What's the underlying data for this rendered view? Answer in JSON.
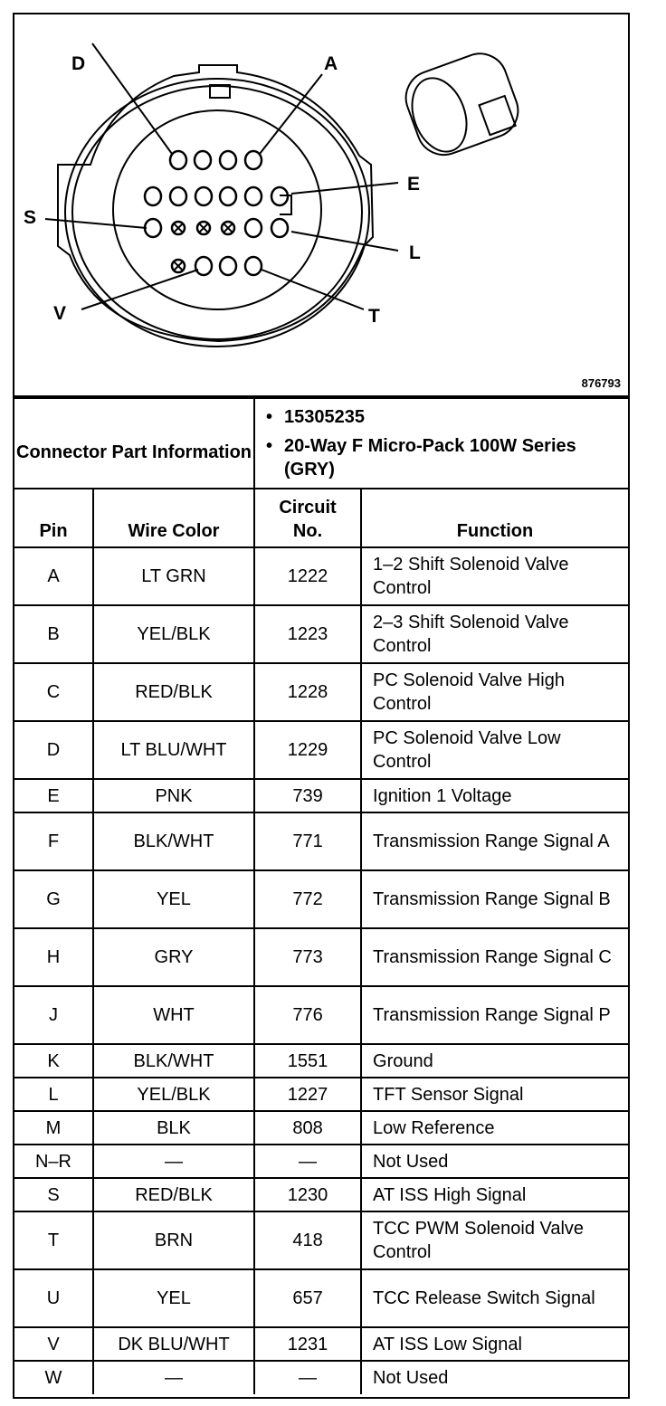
{
  "figure_number": "876793",
  "pin_labels": {
    "D": "D",
    "A": "A",
    "E": "E",
    "S": "S",
    "L": "L",
    "V": "V",
    "T": "T"
  },
  "connector_info": {
    "label": "Connector Part Information",
    "items": [
      "15305235",
      "20-Way F Micro-Pack 100W Series (GRY)"
    ]
  },
  "columns": {
    "pin": "Pin",
    "wire": "Wire Color",
    "circuit": "Circuit No.",
    "function": "Function"
  },
  "rows": [
    {
      "pin": "A",
      "wire": "LT GRN",
      "circuit": "1222",
      "function": "1–2 Shift Solenoid Valve Control"
    },
    {
      "pin": "B",
      "wire": "YEL/BLK",
      "circuit": "1223",
      "function": "2–3 Shift Solenoid Valve Control"
    },
    {
      "pin": "C",
      "wire": "RED/BLK",
      "circuit": "1228",
      "function": "PC Solenoid Valve High Control"
    },
    {
      "pin": "D",
      "wire": "LT BLU/WHT",
      "circuit": "1229",
      "function": "PC Solenoid Valve Low Control"
    },
    {
      "pin": "E",
      "wire": "PNK",
      "circuit": "739",
      "function": "Ignition 1 Voltage"
    },
    {
      "pin": "F",
      "wire": "BLK/WHT",
      "circuit": "771",
      "function": "Transmission Range Signal A"
    },
    {
      "pin": "G",
      "wire": "YEL",
      "circuit": "772",
      "function": "Transmission Range Signal B"
    },
    {
      "pin": "H",
      "wire": "GRY",
      "circuit": "773",
      "function": "Transmission Range Signal C"
    },
    {
      "pin": "J",
      "wire": "WHT",
      "circuit": "776",
      "function": "Transmission Range Signal P"
    },
    {
      "pin": "K",
      "wire": "BLK/WHT",
      "circuit": "1551",
      "function": "Ground"
    },
    {
      "pin": "L",
      "wire": "YEL/BLK",
      "circuit": "1227",
      "function": "TFT Sensor Signal"
    },
    {
      "pin": "M",
      "wire": "BLK",
      "circuit": "808",
      "function": "Low Reference"
    },
    {
      "pin": "N–R",
      "wire": "—",
      "circuit": "—",
      "function": "Not Used"
    },
    {
      "pin": "S",
      "wire": "RED/BLK",
      "circuit": "1230",
      "function": "AT ISS High Signal"
    },
    {
      "pin": "T",
      "wire": "BRN",
      "circuit": "418",
      "function": "TCC PWM Solenoid Valve Control"
    },
    {
      "pin": "U",
      "wire": "YEL",
      "circuit": "657",
      "function": "TCC Release Switch Signal"
    },
    {
      "pin": "V",
      "wire": "DK BLU/WHT",
      "circuit": "1231",
      "function": "AT ISS Low Signal"
    },
    {
      "pin": "W",
      "wire": "—",
      "circuit": "—",
      "function": "Not Used"
    }
  ]
}
